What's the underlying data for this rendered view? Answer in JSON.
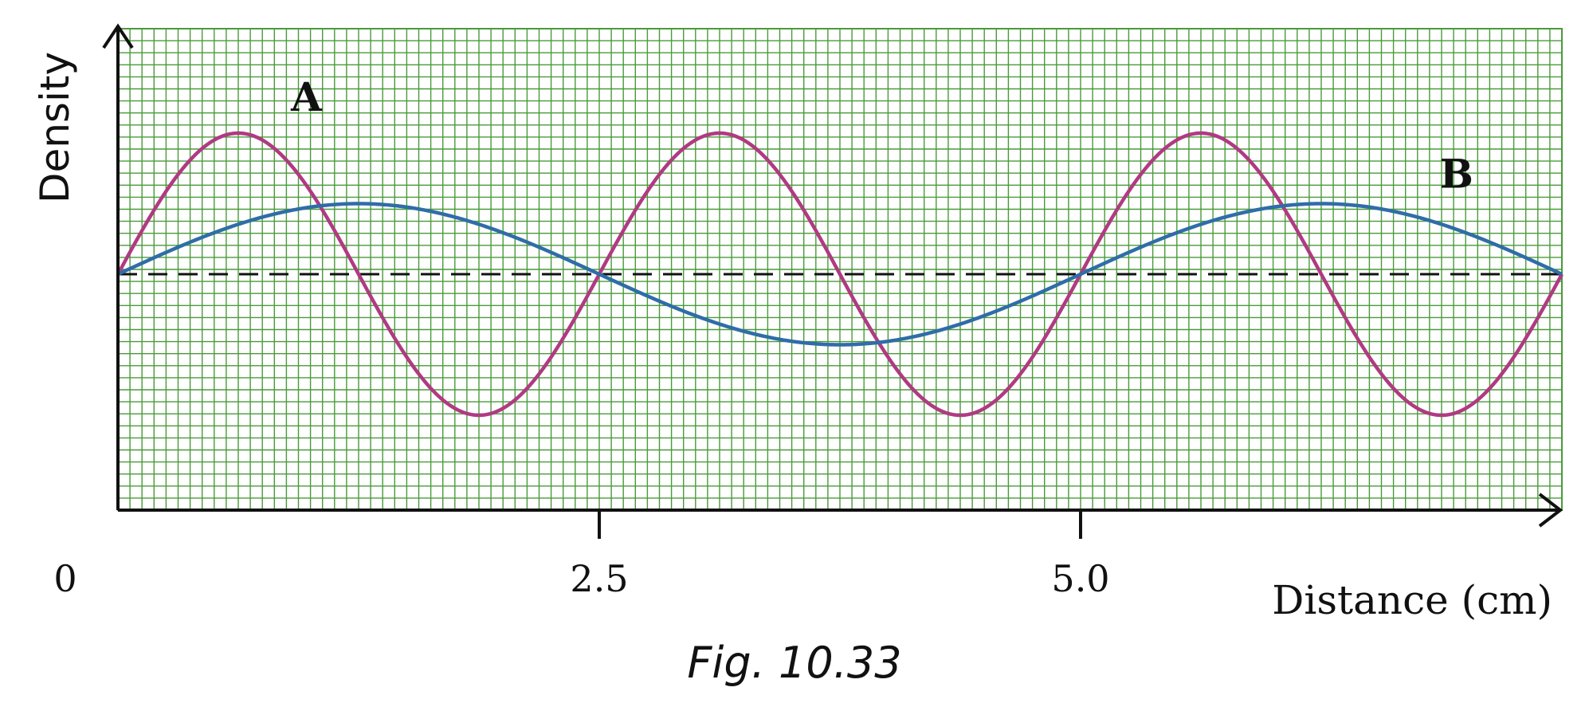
{
  "chart_data": {
    "type": "line",
    "title": "",
    "xlabel": "Distance (cm)",
    "ylabel": "Density",
    "xlim": [
      0,
      7.5
    ],
    "ylim": [
      -1.6,
      1.6
    ],
    "x_ticks": [
      "0",
      "2.5",
      "5.0"
    ],
    "x_tick_values": [
      0,
      2.5,
      5.0
    ],
    "grid": true,
    "reference_line": {
      "y": 0,
      "style": "dashed"
    },
    "series": [
      {
        "name": "A",
        "color": "#b03a82",
        "amplitude": 1.0,
        "wavelength_cm": 2.5,
        "x": [
          0,
          0.625,
          1.25,
          1.875,
          2.5,
          3.125,
          3.75,
          4.375,
          5.0,
          5.625,
          6.25,
          6.875,
          7.5
        ],
        "y": [
          0,
          1,
          0,
          -1,
          0,
          1,
          0,
          -1,
          0,
          1,
          0,
          -1,
          0
        ]
      },
      {
        "name": "B",
        "color": "#2f6da8",
        "amplitude": 0.5,
        "wavelength_cm": 5.0,
        "x": [
          0,
          1.25,
          2.5,
          3.75,
          5.0,
          6.25,
          7.5
        ],
        "y": [
          0,
          0.5,
          0,
          -0.5,
          0,
          0.5,
          0
        ]
      }
    ],
    "colors": {
      "grid": "#4a9a3a",
      "axis": "#111111",
      "dashed": "#111111"
    }
  },
  "caption": "Fig. 10.33"
}
